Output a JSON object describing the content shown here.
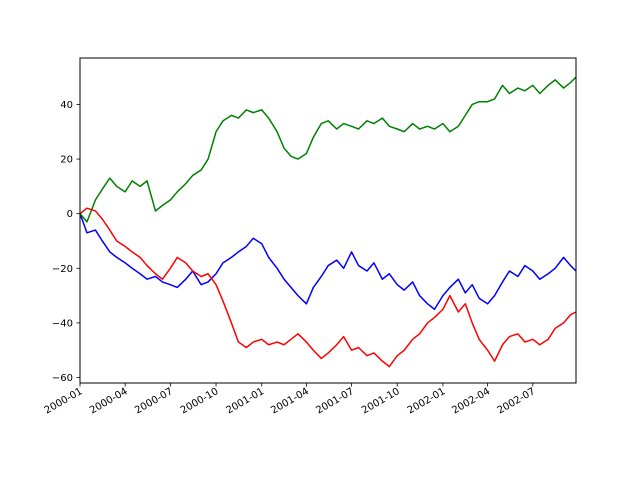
{
  "chart_data": {
    "type": "line",
    "title": "",
    "xlabel": "",
    "ylabel": "",
    "x_range": [
      "2000-01-01",
      "2002-09-26"
    ],
    "ylim": [
      -62,
      57
    ],
    "x_ticks": [
      "2000-01",
      "2000-04",
      "2000-07",
      "2000-10",
      "2001-01",
      "2001-04",
      "2001-07",
      "2001-10",
      "2002-01",
      "2002-04",
      "2002-07"
    ],
    "y_ticks": [
      "−60",
      "−40",
      "−20",
      "0",
      "20",
      "40"
    ],
    "y_tick_values": [
      -60,
      -40,
      -20,
      0,
      20,
      40
    ],
    "grid": false,
    "legend": "none",
    "series": [
      {
        "color": "#0000ff",
        "x": [
          "2000-01-01",
          "2000-01-15",
          "2000-02-01",
          "2000-02-15",
          "2000-03-01",
          "2000-03-15",
          "2000-04-01",
          "2000-04-15",
          "2000-05-01",
          "2000-05-15",
          "2000-06-01",
          "2000-06-15",
          "2000-07-01",
          "2000-07-15",
          "2000-08-01",
          "2000-08-15",
          "2000-09-01",
          "2000-09-15",
          "2000-10-01",
          "2000-10-15",
          "2000-11-01",
          "2000-11-15",
          "2000-12-01",
          "2000-12-15",
          "2001-01-01",
          "2001-01-15",
          "2001-02-01",
          "2001-02-15",
          "2001-03-01",
          "2001-03-15",
          "2001-04-01",
          "2001-04-15",
          "2001-05-01",
          "2001-05-15",
          "2001-06-01",
          "2001-06-15",
          "2001-07-01",
          "2001-07-15",
          "2001-08-01",
          "2001-08-15",
          "2001-09-01",
          "2001-09-15",
          "2001-10-01",
          "2001-10-15",
          "2001-11-01",
          "2001-11-15",
          "2001-12-01",
          "2001-12-15",
          "2002-01-01",
          "2002-01-15",
          "2002-02-01",
          "2002-02-15",
          "2002-03-01",
          "2002-03-15",
          "2002-04-01",
          "2002-04-15",
          "2002-05-01",
          "2002-05-15",
          "2002-06-01",
          "2002-06-15",
          "2002-07-01",
          "2002-07-15",
          "2002-08-01",
          "2002-08-15",
          "2002-09-01",
          "2002-09-15",
          "2002-09-26"
        ],
        "y": [
          0,
          -7,
          -6,
          -10,
          -14,
          -16,
          -18,
          -20,
          -22,
          -24,
          -23,
          -25,
          -26,
          -27,
          -24,
          -21,
          -26,
          -25,
          -22,
          -18,
          -16,
          -14,
          -12,
          -9,
          -11,
          -16,
          -20,
          -24,
          -27,
          -30,
          -33,
          -27,
          -23,
          -19,
          -17,
          -20,
          -14,
          -19,
          -21,
          -18,
          -24,
          -22,
          -26,
          -28,
          -25,
          -30,
          -33,
          -35,
          -30,
          -27,
          -24,
          -29,
          -26,
          -31,
          -33,
          -30,
          -25,
          -21,
          -23,
          -19,
          -21,
          -24,
          -22,
          -20,
          -16,
          -19,
          -21
        ]
      },
      {
        "color": "#008000",
        "x": [
          "2000-01-01",
          "2000-01-15",
          "2000-02-01",
          "2000-02-15",
          "2000-03-01",
          "2000-03-15",
          "2000-04-01",
          "2000-04-15",
          "2000-05-01",
          "2000-05-15",
          "2000-06-01",
          "2000-06-15",
          "2000-07-01",
          "2000-07-15",
          "2000-08-01",
          "2000-08-15",
          "2000-09-01",
          "2000-09-15",
          "2000-10-01",
          "2000-10-15",
          "2000-11-01",
          "2000-11-15",
          "2000-12-01",
          "2000-12-15",
          "2001-01-01",
          "2001-01-15",
          "2001-02-01",
          "2001-02-15",
          "2001-03-01",
          "2001-03-15",
          "2001-04-01",
          "2001-04-15",
          "2001-05-01",
          "2001-05-15",
          "2001-06-01",
          "2001-06-15",
          "2001-07-01",
          "2001-07-15",
          "2001-08-01",
          "2001-08-15",
          "2001-09-01",
          "2001-09-15",
          "2001-10-01",
          "2001-10-15",
          "2001-11-01",
          "2001-11-15",
          "2001-12-01",
          "2001-12-15",
          "2002-01-01",
          "2002-01-15",
          "2002-02-01",
          "2002-02-15",
          "2002-03-01",
          "2002-03-15",
          "2002-04-01",
          "2002-04-15",
          "2002-05-01",
          "2002-05-15",
          "2002-06-01",
          "2002-06-15",
          "2002-07-01",
          "2002-07-15",
          "2002-08-01",
          "2002-08-15",
          "2002-09-01",
          "2002-09-15",
          "2002-09-26"
        ],
        "y": [
          0,
          -3,
          5,
          9,
          13,
          10,
          8,
          12,
          10,
          12,
          1,
          3,
          5,
          8,
          11,
          14,
          16,
          20,
          30,
          34,
          36,
          35,
          38,
          37,
          38,
          35,
          30,
          24,
          21,
          20,
          22,
          28,
          33,
          34,
          31,
          33,
          32,
          31,
          34,
          33,
          35,
          32,
          31,
          30,
          33,
          31,
          32,
          31,
          33,
          30,
          32,
          36,
          40,
          41,
          41,
          42,
          47,
          44,
          46,
          45,
          47,
          44,
          47,
          49,
          46,
          48,
          50
        ]
      },
      {
        "color": "#ff0000",
        "x": [
          "2000-01-01",
          "2000-01-15",
          "2000-02-01",
          "2000-02-15",
          "2000-03-01",
          "2000-03-15",
          "2000-04-01",
          "2000-04-15",
          "2000-05-01",
          "2000-05-15",
          "2000-06-01",
          "2000-06-15",
          "2000-07-01",
          "2000-07-15",
          "2000-08-01",
          "2000-08-15",
          "2000-09-01",
          "2000-09-15",
          "2000-10-01",
          "2000-10-15",
          "2000-11-01",
          "2000-11-15",
          "2000-12-01",
          "2000-12-15",
          "2001-01-01",
          "2001-01-15",
          "2001-02-01",
          "2001-02-15",
          "2001-03-01",
          "2001-03-15",
          "2001-04-01",
          "2001-04-15",
          "2001-05-01",
          "2001-05-15",
          "2001-06-01",
          "2001-06-15",
          "2001-07-01",
          "2001-07-15",
          "2001-08-01",
          "2001-08-15",
          "2001-09-01",
          "2001-09-15",
          "2001-10-01",
          "2001-10-15",
          "2001-11-01",
          "2001-11-15",
          "2001-12-01",
          "2001-12-15",
          "2002-01-01",
          "2002-01-15",
          "2002-02-01",
          "2002-02-15",
          "2002-03-01",
          "2002-03-15",
          "2002-04-01",
          "2002-04-15",
          "2002-05-01",
          "2002-05-15",
          "2002-06-01",
          "2002-06-15",
          "2002-07-01",
          "2002-07-15",
          "2002-08-01",
          "2002-08-15",
          "2002-09-01",
          "2002-09-15",
          "2002-09-26"
        ],
        "y": [
          0,
          2,
          1,
          -2,
          -6,
          -10,
          -12,
          -14,
          -16,
          -19,
          -22,
          -24,
          -20,
          -16,
          -18,
          -21,
          -23,
          -22,
          -26,
          -32,
          -40,
          -47,
          -49,
          -47,
          -46,
          -48,
          -47,
          -48,
          -46,
          -44,
          -47,
          -50,
          -53,
          -51,
          -48,
          -45,
          -50,
          -49,
          -52,
          -51,
          -54,
          -56,
          -52,
          -50,
          -46,
          -44,
          -40,
          -38,
          -35,
          -30,
          -36,
          -33,
          -40,
          -46,
          -50,
          -54,
          -48,
          -45,
          -44,
          -47,
          -46,
          -48,
          -46,
          -42,
          -40,
          -37,
          -36
        ]
      }
    ]
  }
}
